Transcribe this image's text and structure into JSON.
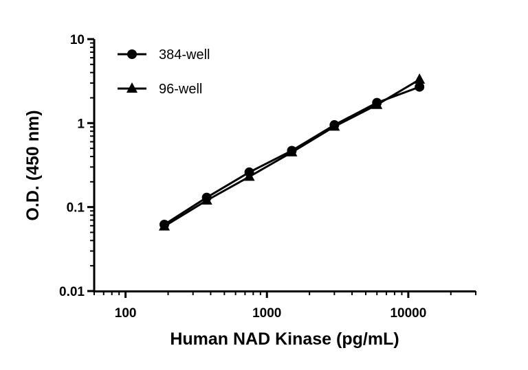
{
  "chart_data": {
    "type": "line",
    "title": "",
    "xlabel": "Human NAD Kinase (pg/mL)",
    "ylabel": "O.D. (450 nm)",
    "x_scale": "log",
    "y_scale": "log",
    "xlim": [
      60,
      30000
    ],
    "ylim": [
      0.01,
      10
    ],
    "x_ticks": [
      100,
      1000,
      10000
    ],
    "x_tick_labels": [
      "100",
      "1000",
      "10000"
    ],
    "y_ticks": [
      0.01,
      0.1,
      1,
      10
    ],
    "y_tick_labels": [
      "0.01",
      "0.1",
      "1",
      "10"
    ],
    "grid": false,
    "legend_position": "top-left",
    "series": [
      {
        "name": "384-well",
        "marker": "circle",
        "color": "#000000",
        "x": [
          188,
          375,
          750,
          1500,
          3000,
          6000,
          12000
        ],
        "y": [
          0.062,
          0.13,
          0.26,
          0.47,
          0.95,
          1.75,
          2.7
        ]
      },
      {
        "name": "96-well",
        "marker": "triangle",
        "color": "#000000",
        "x": [
          188,
          375,
          750,
          1500,
          3000,
          6000,
          12000
        ],
        "y": [
          0.059,
          0.12,
          0.23,
          0.45,
          0.91,
          1.65,
          3.3
        ]
      }
    ]
  }
}
